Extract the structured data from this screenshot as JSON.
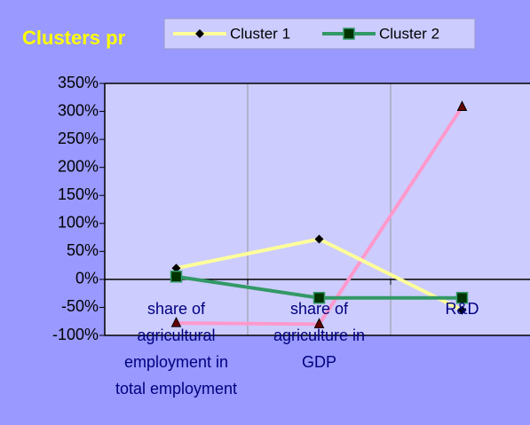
{
  "chart_data": {
    "type": "line",
    "title": "Clusters pr",
    "categories": [
      "share  of agricultural employment in total employment",
      "share  of agriculture in GDP",
      "R&D"
    ],
    "series": [
      {
        "name": "Cluster 1",
        "color": "#ffff99",
        "marker": "diamond",
        "values": [
          20,
          72,
          -55
        ]
      },
      {
        "name": "Cluster 2",
        "color": "#339966",
        "marker": "square",
        "values": [
          5,
          -33,
          -33
        ]
      },
      {
        "color": "#ff99cc",
        "marker": "triangle",
        "values": [
          -78,
          -80,
          308
        ]
      }
    ],
    "ylim": [
      -100,
      350
    ],
    "yticks": [
      {
        "value": -100,
        "label": "-100%"
      },
      {
        "value": -50,
        "label": "-50%"
      },
      {
        "value": 0,
        "label": "0%"
      },
      {
        "value": 50,
        "label": "50%"
      },
      {
        "value": 100,
        "label": "100%"
      },
      {
        "value": 150,
        "label": "150%"
      },
      {
        "value": 200,
        "label": "200%"
      },
      {
        "value": 250,
        "label": "250%"
      },
      {
        "value": 300,
        "label": "300%"
      },
      {
        "value": 350,
        "label": "350%"
      }
    ],
    "grid": true
  }
}
